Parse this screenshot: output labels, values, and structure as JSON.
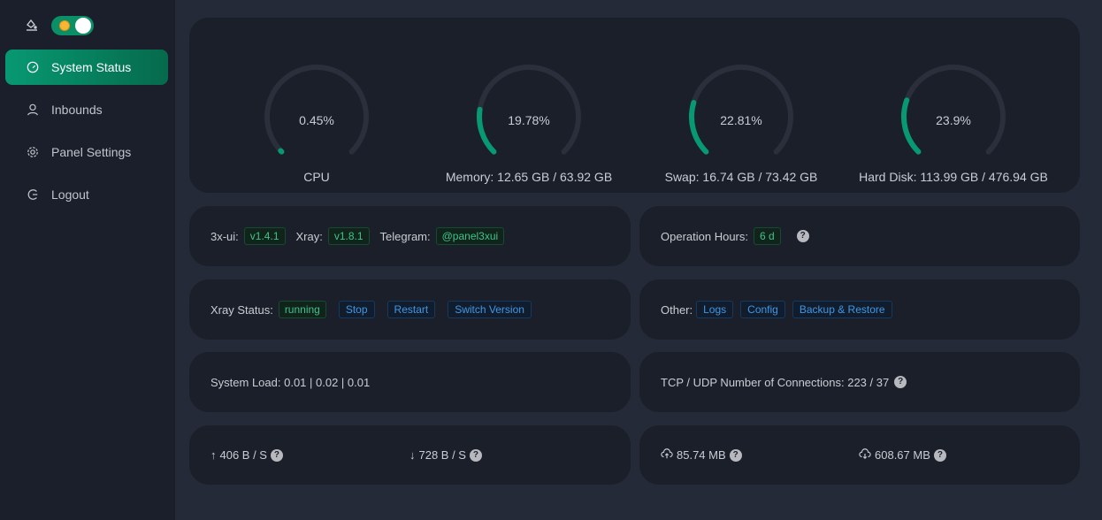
{
  "sidebar": {
    "items": [
      {
        "label": "System Status",
        "icon": "dashboard-icon",
        "active": true
      },
      {
        "label": "Inbounds",
        "icon": "user-icon"
      },
      {
        "label": "Panel Settings",
        "icon": "gear-icon"
      },
      {
        "label": "Logout",
        "icon": "logout-icon"
      }
    ],
    "theme_toggle_on": true
  },
  "gauges": [
    {
      "value": "0.45%",
      "percent": 0.45,
      "label": "CPU"
    },
    {
      "value": "19.78%",
      "percent": 19.78,
      "label": "Memory: 12.65 GB / 63.92 GB"
    },
    {
      "value": "22.81%",
      "percent": 22.81,
      "label": "Swap: 16.74 GB / 73.42 GB"
    },
    {
      "value": "23.9%",
      "percent": 23.9,
      "label": "Hard Disk: 113.99 GB / 476.94 GB"
    }
  ],
  "versions": {
    "ui_label": "3x-ui:",
    "ui_version": "v1.4.1",
    "xray_label": "Xray:",
    "xray_version": "v1.8.1",
    "telegram_label": "Telegram:",
    "telegram": "@panel3xui"
  },
  "uptime": {
    "label": "Operation Hours:",
    "value": "6 d"
  },
  "xray": {
    "label": "Xray Status:",
    "status": "running",
    "stop": "Stop",
    "restart": "Restart",
    "switch": "Switch Version"
  },
  "other": {
    "label": "Other:",
    "logs": "Logs",
    "config": "Config",
    "backup": "Backup & Restore"
  },
  "load": {
    "text": "System Load: 0.01 | 0.02 | 0.01"
  },
  "connections": {
    "text": "TCP / UDP Number of Connections: 223 / 37"
  },
  "speed": {
    "up": "406 B / S",
    "down": "728 B / S"
  },
  "traffic": {
    "sent": "85.74 MB",
    "received": "608.67 MB"
  },
  "colors": {
    "accent": "#079972",
    "track": "#2a2f3b"
  }
}
